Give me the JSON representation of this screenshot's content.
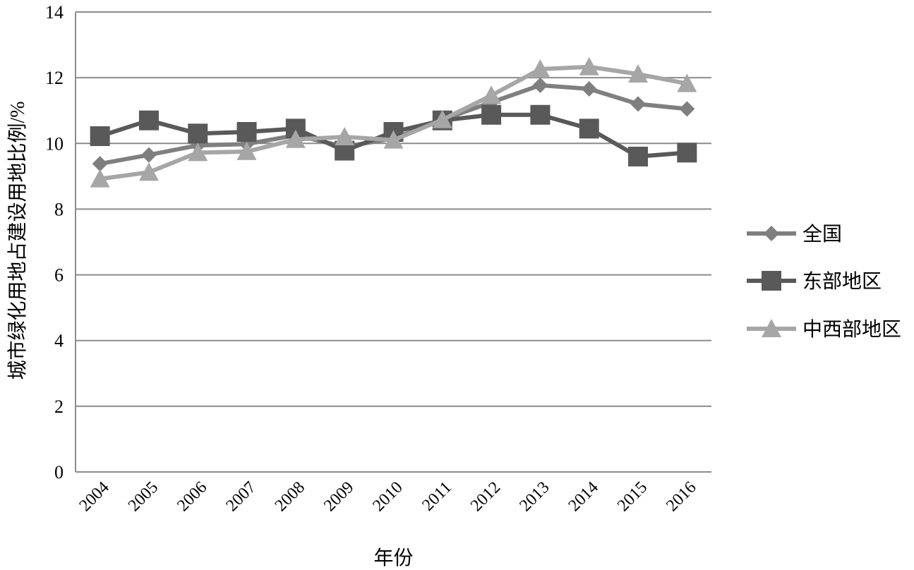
{
  "chart_data": {
    "type": "line",
    "xlabel": "年份",
    "ylabel": "城市绿化用地占建设用地比例/%",
    "ylim": [
      0,
      14
    ],
    "yticks": [
      0,
      2,
      4,
      6,
      8,
      10,
      12,
      14
    ],
    "categories": [
      "2004",
      "2005",
      "2006",
      "2007",
      "2008",
      "2009",
      "2010",
      "2011",
      "2012",
      "2013",
      "2014",
      "2015",
      "2016"
    ],
    "grid": true,
    "legend_position": "right",
    "series": [
      {
        "name": "全国",
        "marker": "diamond",
        "color": "#7f7f7f",
        "values": [
          9.38,
          9.65,
          9.94,
          9.98,
          10.25,
          9.9,
          10.15,
          10.72,
          11.25,
          11.77,
          11.66,
          11.2,
          11.05
        ]
      },
      {
        "name": "东部地区",
        "marker": "square",
        "color": "#595959",
        "values": [
          10.22,
          10.7,
          10.3,
          10.35,
          10.45,
          9.78,
          10.35,
          10.7,
          10.87,
          10.87,
          10.45,
          9.6,
          9.72
        ]
      },
      {
        "name": "中西部地区",
        "marker": "triangle",
        "color": "#a6a6a6",
        "values": [
          8.92,
          9.12,
          9.72,
          9.75,
          10.12,
          10.2,
          10.1,
          10.72,
          11.46,
          12.26,
          12.33,
          12.11,
          11.82
        ]
      }
    ]
  }
}
